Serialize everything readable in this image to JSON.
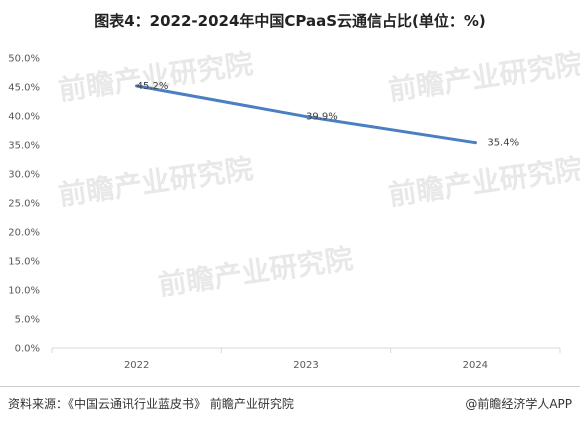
{
  "header": {
    "title": "图表4：2022-2024年中国CPaaS云通信占比(单位：%)"
  },
  "chart_data": {
    "type": "line",
    "categories": [
      "2022",
      "2023",
      "2024"
    ],
    "series": [
      {
        "values": [
          45.2,
          39.9,
          35.4
        ],
        "labels": [
          "45.2%",
          "39.9%",
          "35.4%"
        ],
        "color": "#4a7fc1"
      }
    ],
    "ylim": [
      0,
      50
    ],
    "yticks": [
      "0.0%",
      "5.0%",
      "10.0%",
      "15.0%",
      "20.0%",
      "25.0%",
      "30.0%",
      "35.0%",
      "40.0%",
      "45.0%",
      "50.0%"
    ],
    "grid": false
  },
  "watermark": {
    "brand": "前瞻产业研究院"
  },
  "footer": {
    "source": "资料来源：《中国云通讯行业蓝皮书》 前瞻产业研究院",
    "credit": "@前瞻经济学人APP"
  }
}
